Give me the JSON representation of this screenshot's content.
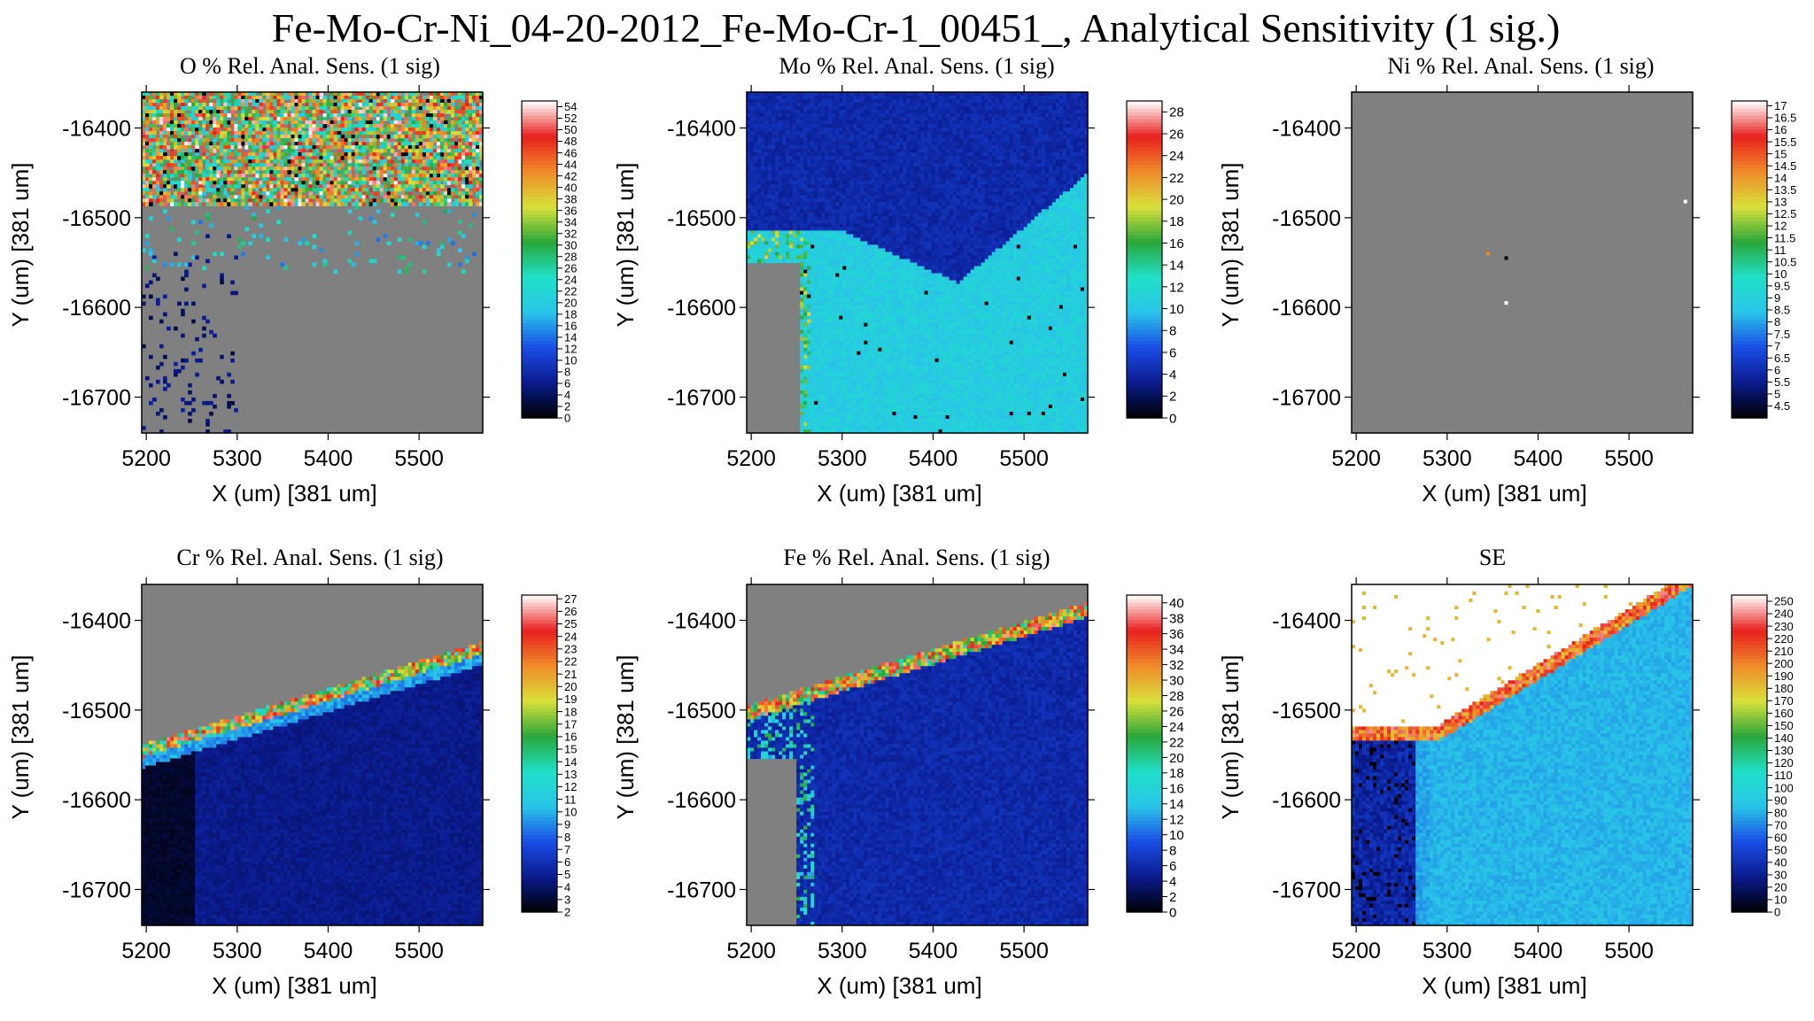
{
  "figure_title": "Fe-Mo-Cr-Ni_04-20-2012_Fe-Mo-Cr-1_00451_, Analytical Sensitivity (1 sig.)",
  "colors": {
    "background": "#ffffff",
    "no_data": "#808080",
    "frame": "#000000",
    "colormap": [
      "#000000",
      "#0a1a8c",
      "#1a4ce6",
      "#29c4e8",
      "#1fe0c8",
      "#2aa63a",
      "#d9e03a",
      "#f08a2a",
      "#e8201e",
      "#ffffff"
    ]
  },
  "chart_data": [
    {
      "type": "heatmap",
      "title": "O % Rel. Anal. Sens. (1 sig)",
      "xlabel": "X (um)   [381 um]",
      "ylabel": "Y (um)   [381 um]",
      "xlim": [
        5195,
        5570
      ],
      "ylim": [
        -16740,
        -16360
      ],
      "xticks": [
        5200,
        5300,
        5400,
        5500
      ],
      "yticks": [
        -16400,
        -16500,
        -16600,
        -16700
      ],
      "colorbar": {
        "min": 0,
        "max": 55,
        "ticks": [
          0,
          2,
          4,
          6,
          8,
          10,
          12,
          14,
          16,
          18,
          20,
          22,
          24,
          26,
          28,
          30,
          32,
          34,
          36,
          38,
          40,
          42,
          44,
          46,
          48,
          50,
          52,
          54
        ]
      },
      "pattern": "oxygen"
    },
    {
      "type": "heatmap",
      "title": "Mo % Rel. Anal. Sens. (1 sig)",
      "xlabel": "X (um)   [381 um]",
      "ylabel": "Y (um)   [381 um]",
      "xlim": [
        5195,
        5570
      ],
      "ylim": [
        -16740,
        -16360
      ],
      "xticks": [
        5200,
        5300,
        5400,
        5500
      ],
      "yticks": [
        -16400,
        -16500,
        -16600,
        -16700
      ],
      "colorbar": {
        "min": 0,
        "max": 29,
        "ticks": [
          0,
          2,
          4,
          6,
          8,
          10,
          12,
          14,
          16,
          18,
          20,
          22,
          24,
          26,
          28
        ]
      },
      "pattern": "molybdenum"
    },
    {
      "type": "heatmap",
      "title": "Ni % Rel. Anal. Sens. (1 sig)",
      "xlabel": "X (um)   [381 um]",
      "ylabel": "Y (um)   [381 um]",
      "xlim": [
        5195,
        5570
      ],
      "ylim": [
        -16740,
        -16360
      ],
      "xticks": [
        5200,
        5300,
        5400,
        5500
      ],
      "yticks": [
        -16400,
        -16500,
        -16600,
        -16700
      ],
      "colorbar": {
        "min": 4,
        "max": 17.2,
        "ticks": [
          4.5,
          5,
          5.5,
          6,
          6.5,
          7,
          7.5,
          8,
          8.5,
          9,
          9.5,
          10,
          10.5,
          11,
          11.5,
          12,
          12.5,
          13,
          13.5,
          14,
          14.5,
          15,
          15.5,
          16,
          16.5,
          17
        ]
      },
      "pattern": "nickel"
    },
    {
      "type": "heatmap",
      "title": "Cr % Rel. Anal. Sens. (1 sig)",
      "xlabel": "X (um)   [381 um]",
      "ylabel": "Y (um)   [381 um]",
      "xlim": [
        5195,
        5570
      ],
      "ylim": [
        -16740,
        -16360
      ],
      "xticks": [
        5200,
        5300,
        5400,
        5500
      ],
      "yticks": [
        -16400,
        -16500,
        -16600,
        -16700
      ],
      "colorbar": {
        "min": 2,
        "max": 27.3,
        "ticks": [
          2,
          3,
          4,
          5,
          6,
          7,
          8,
          9,
          10,
          11,
          12,
          13,
          14,
          15,
          16,
          17,
          18,
          19,
          20,
          21,
          22,
          23,
          24,
          25,
          26,
          27
        ]
      },
      "pattern": "chromium"
    },
    {
      "type": "heatmap",
      "title": "Fe % Rel. Anal. Sens. (1 sig)",
      "xlabel": "X (um)   [381 um]",
      "ylabel": "Y (um)   [381 um]",
      "xlim": [
        5195,
        5570
      ],
      "ylim": [
        -16740,
        -16360
      ],
      "xticks": [
        5200,
        5300,
        5400,
        5500
      ],
      "yticks": [
        -16400,
        -16500,
        -16600,
        -16700
      ],
      "colorbar": {
        "min": 0,
        "max": 41,
        "ticks": [
          0,
          2,
          4,
          6,
          8,
          10,
          12,
          14,
          16,
          18,
          20,
          22,
          24,
          26,
          28,
          30,
          32,
          34,
          36,
          38,
          40
        ]
      },
      "pattern": "iron"
    },
    {
      "type": "heatmap",
      "title": "SE",
      "xlabel": "X (um)   [381 um]",
      "ylabel": "Y (um)   [381 um]",
      "xlim": [
        5195,
        5570
      ],
      "ylim": [
        -16740,
        -16360
      ],
      "xticks": [
        5200,
        5300,
        5400,
        5500
      ],
      "yticks": [
        -16400,
        -16500,
        -16600,
        -16700
      ],
      "colorbar": {
        "min": 0,
        "max": 255,
        "ticks": [
          0,
          10,
          20,
          30,
          40,
          50,
          60,
          70,
          80,
          90,
          100,
          110,
          120,
          130,
          140,
          150,
          160,
          170,
          180,
          190,
          200,
          210,
          220,
          230,
          240,
          250
        ]
      },
      "pattern": "se"
    }
  ]
}
